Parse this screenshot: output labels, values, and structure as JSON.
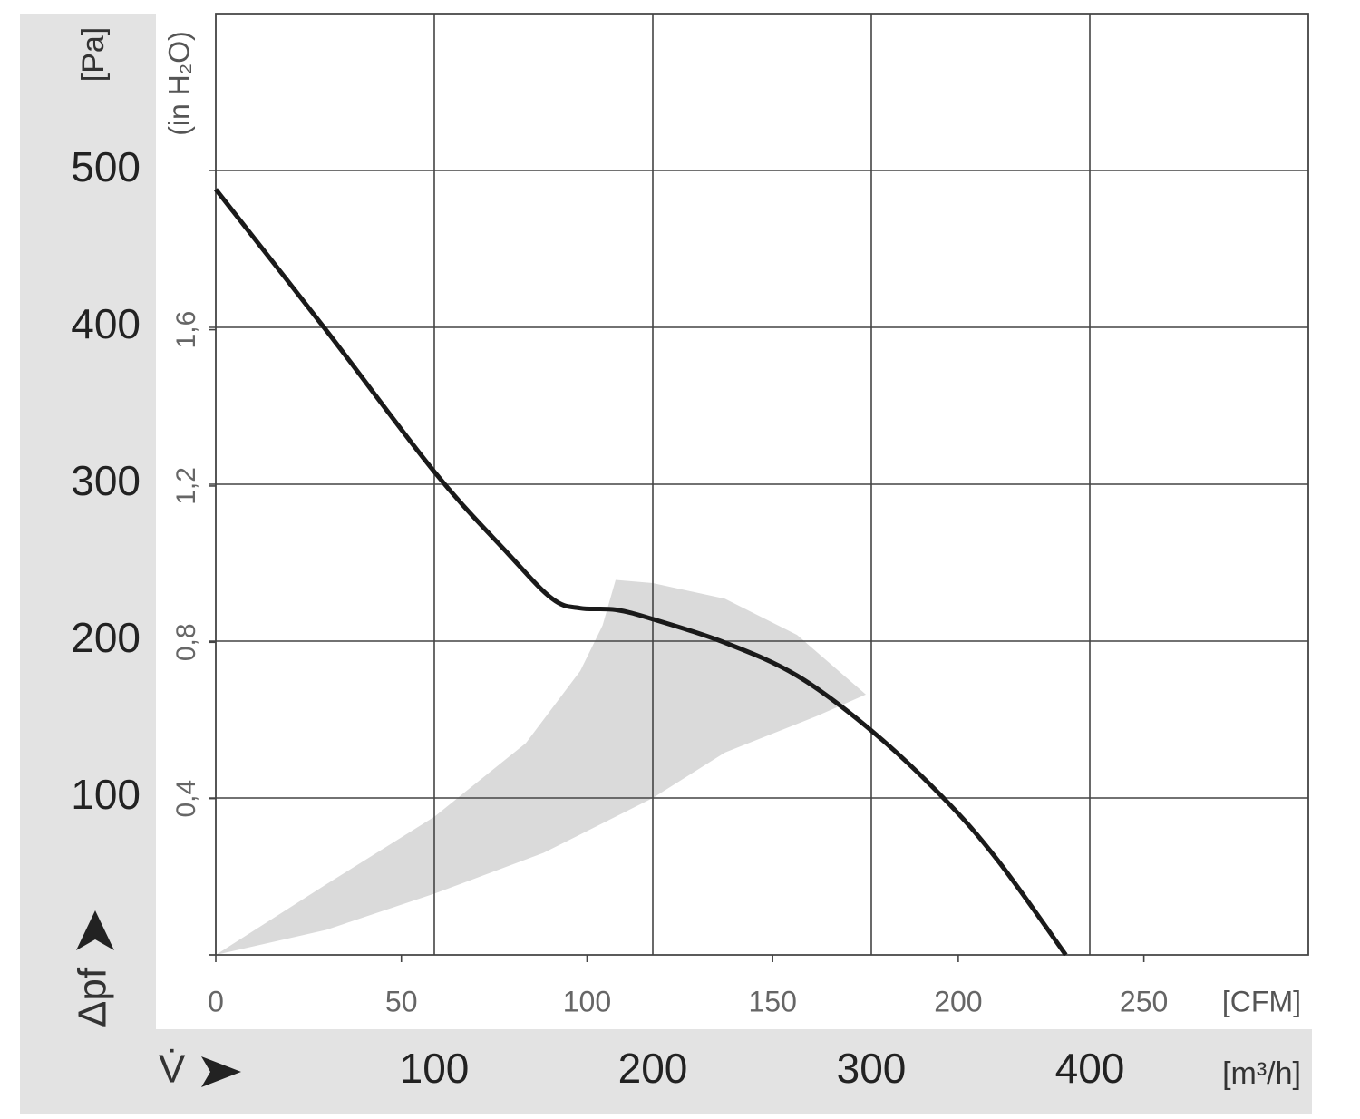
{
  "chart_data": {
    "type": "line",
    "x_title": "V̇",
    "x_label": "[m³/h]",
    "x2_label": "[CFM]",
    "y_title": "Δpf",
    "y_label": "[Pa]",
    "y2_label": "(in H₂O)",
    "xlim": [
      0,
      500
    ],
    "xticks": [
      100,
      200,
      300,
      400
    ],
    "x2lim": [
      0,
      294.3
    ],
    "x2ticks": [
      0,
      50,
      100,
      150,
      200,
      250
    ],
    "ylim": [
      0,
      600
    ],
    "yticks": [
      100,
      200,
      300,
      400,
      500
    ],
    "y2lim": [
      0,
      2.409
    ],
    "y2ticks": [
      {
        "value": 0.4,
        "label": "0,4"
      },
      {
        "value": 0.8,
        "label": "0,8"
      },
      {
        "value": 1.2,
        "label": "1,2"
      },
      {
        "value": 1.6,
        "label": "1,6"
      }
    ],
    "grid": true,
    "series": [
      {
        "color": "#1a1a1a",
        "x": [
          0,
          50.6,
          100,
          133.6,
          154,
          166.8,
          183,
          200,
          233,
          266,
          300,
          333,
          358,
          389
        ],
        "y": [
          488,
          398,
          308,
          256,
          227,
          221,
          220,
          214,
          199,
          178,
          143,
          100,
          60,
          0
        ]
      }
    ],
    "area": {
      "color": "#dadada",
      "x": [
        0,
        50.6,
        100,
        141.9,
        166.8,
        177,
        183,
        200,
        233,
        266,
        297.5,
        274.7,
        233,
        200,
        150,
        100,
        50.6
      ],
      "y": [
        0,
        45,
        88,
        135,
        181,
        210,
        239,
        237,
        227,
        204,
        166,
        152,
        129,
        100,
        65,
        39,
        16
      ]
    }
  }
}
